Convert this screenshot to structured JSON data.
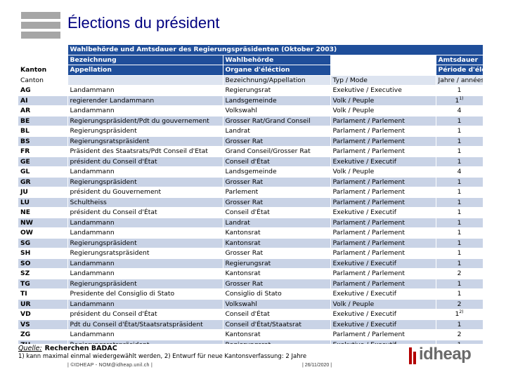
{
  "title": "Élections du président",
  "table": {
    "caption": "Wahlbehörde und Amtsdauer des Regierungspräsidenten (Oktober 2003)",
    "header1": [
      "",
      "Bezeichnung",
      "Wahlbehörde",
      "",
      "Amtsdauer"
    ],
    "header2": [
      "Kanton",
      "Appellation",
      "Organe d'éléction",
      "",
      "Période d'élection"
    ],
    "header3": [
      "Canton",
      "",
      "Bezeichnung/Appellation",
      "Typ / Mode",
      "Jahre / années"
    ],
    "rows": [
      {
        "canton": "AG",
        "appellation": "Landammann",
        "organe": "Regierungsrat",
        "mode": "Exekutive / Executive",
        "duree": "1",
        "note": ""
      },
      {
        "canton": "AI",
        "appellation": "regierender Landammann",
        "organe": "Landsgemeinde",
        "mode": "Volk / Peuple",
        "duree": "1",
        "note": "1)"
      },
      {
        "canton": "AR",
        "appellation": "Landammann",
        "organe": "Volkswahl",
        "mode": "Volk / Peuple",
        "duree": "4",
        "note": ""
      },
      {
        "canton": "BE",
        "appellation": "Regierungspräsident/Pdt du gouvernement",
        "organe": "Grosser Rat/Grand Conseil",
        "mode": "Parlament / Parlement",
        "duree": "1",
        "note": ""
      },
      {
        "canton": "BL",
        "appellation": "Regierungspräsident",
        "organe": "Landrat",
        "mode": "Parlament / Parlement",
        "duree": "1",
        "note": ""
      },
      {
        "canton": "BS",
        "appellation": "Regierungsratspräsident",
        "organe": "Grosser Rat",
        "mode": "Parlament / Parlement",
        "duree": "1",
        "note": ""
      },
      {
        "canton": "FR",
        "appellation": "Präsident des Staatsrats/Pdt Conseil d'Etat",
        "organe": "Grand Conseil/Grosser Rat",
        "mode": "Parlament / Parlement",
        "duree": "1",
        "note": ""
      },
      {
        "canton": "GE",
        "appellation": "président du Conseil d'État",
        "organe": "Conseil d'État",
        "mode": "Exekutive / Executif",
        "duree": "1",
        "note": ""
      },
      {
        "canton": "GL",
        "appellation": "Landammann",
        "organe": "Landsgemeinde",
        "mode": "Volk / Peuple",
        "duree": "4",
        "note": ""
      },
      {
        "canton": "GR",
        "appellation": "Regierungspräsident",
        "organe": "Grosser Rat",
        "mode": "Parlament / Parlement",
        "duree": "1",
        "note": ""
      },
      {
        "canton": "JU",
        "appellation": "président du Gouvernement",
        "organe": "Parlement",
        "mode": "Parlament / Parlement",
        "duree": "1",
        "note": ""
      },
      {
        "canton": "LU",
        "appellation": "Schultheiss",
        "organe": "Grosser Rat",
        "mode": "Parlament / Parlement",
        "duree": "1",
        "note": ""
      },
      {
        "canton": "NE",
        "appellation": "président du Conseil d'État",
        "organe": "Conseil d'État",
        "mode": "Exekutive / Executif",
        "duree": "1",
        "note": ""
      },
      {
        "canton": "NW",
        "appellation": "Landammann",
        "organe": "Landrat",
        "mode": "Parlament / Parlement",
        "duree": "1",
        "note": ""
      },
      {
        "canton": "OW",
        "appellation": "Landammann",
        "organe": "Kantonsrat",
        "mode": "Parlament / Parlement",
        "duree": "1",
        "note": ""
      },
      {
        "canton": "SG",
        "appellation": "Regierungspräsident",
        "organe": "Kantonsrat",
        "mode": "Parlament / Parlement",
        "duree": "1",
        "note": ""
      },
      {
        "canton": "SH",
        "appellation": "Regierungsratspräsident",
        "organe": "Grosser Rat",
        "mode": "Parlament / Parlement",
        "duree": "1",
        "note": ""
      },
      {
        "canton": "SO",
        "appellation": "Landammann",
        "organe": "Regierungsrat",
        "mode": "Exekutive / Executif",
        "duree": "1",
        "note": ""
      },
      {
        "canton": "SZ",
        "appellation": "Landammann",
        "organe": "Kantonsrat",
        "mode": "Parlament / Parlement",
        "duree": "2",
        "note": ""
      },
      {
        "canton": "TG",
        "appellation": "Regierungspräsident",
        "organe": "Grosser Rat",
        "mode": "Parlament / Parlement",
        "duree": "1",
        "note": ""
      },
      {
        "canton": "TI",
        "appellation": "Presidente del Consiglio di Stato",
        "organe": "Consiglio di Stato",
        "mode": "Exekutive / Executif",
        "duree": "1",
        "note": ""
      },
      {
        "canton": "UR",
        "appellation": "Landammann",
        "organe": "Volkswahl",
        "mode": "Volk / Peuple",
        "duree": "2",
        "note": ""
      },
      {
        "canton": "VD",
        "appellation": "président du Conseil d'État",
        "organe": "Conseil d'État",
        "mode": "Exekutive / Executif",
        "duree": "1",
        "note": "2)"
      },
      {
        "canton": "VS",
        "appellation": "Pdt du Conseil d'État/Staatsratspräsident",
        "organe": "Conseil d'État/Staatsrat",
        "mode": "Exekutive / Executif",
        "duree": "1",
        "note": ""
      },
      {
        "canton": "ZG",
        "appellation": "Landammann",
        "organe": "Kantonsrat",
        "mode": "Parlament / Parlement",
        "duree": "2",
        "note": ""
      },
      {
        "canton": "ZH",
        "appellation": "Regierungsratspräsident",
        "organe": "Regierungsrat",
        "mode": "Exekutive / Executif",
        "duree": "1",
        "note": ""
      }
    ]
  },
  "source": {
    "label": "Quelle:",
    "value": "Recherchen BADAC"
  },
  "footnote": "1) kann maximal einmal wiedergewählt werden, 2) Entwurf für neue Kantonsverfassung: 2 Jahre",
  "footer": {
    "left": "| ©IDHEAP - NOM@idheap.unil.ch |",
    "date": "| 26/11/2020 |"
  },
  "brand": {
    "name": "idheap",
    "color": "#6b6b6b",
    "mark_color": "#b30000"
  },
  "colors": {
    "title": "#000080",
    "header_bg": "#1f4e9a",
    "subheader_bg": "#dde4f0",
    "alt_row_bg": "#c9d3e6",
    "logo_bars": "#a6a6a6"
  }
}
